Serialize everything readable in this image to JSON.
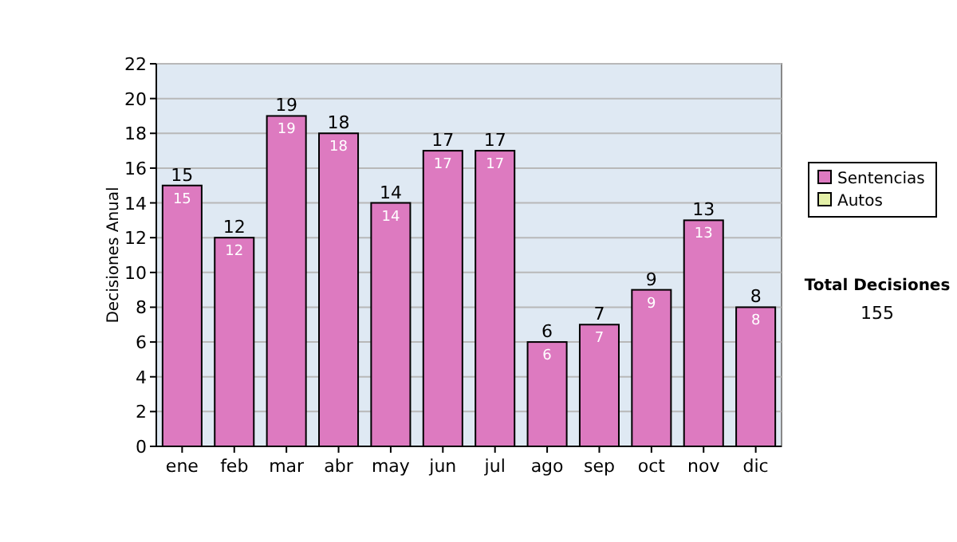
{
  "chart_data": {
    "type": "bar",
    "ylabel": "Decisiones Anual",
    "categories": [
      "ene",
      "feb",
      "mar",
      "abr",
      "may",
      "jun",
      "jul",
      "ago",
      "sep",
      "oct",
      "nov",
      "dic"
    ],
    "series": [
      {
        "name": "Sentencias",
        "color": "#dd7ac0",
        "values": [
          15,
          12,
          19,
          18,
          14,
          17,
          17,
          6,
          7,
          9,
          13,
          8
        ],
        "value_labels": [
          "15",
          "12",
          "19",
          "18",
          "14",
          "17",
          "17",
          "6",
          "7",
          "9",
          "13",
          "8"
        ]
      },
      {
        "name": "Autos",
        "color": "#e4f0a8",
        "values": [
          0,
          0,
          0,
          0,
          0,
          0,
          0,
          0,
          0,
          0,
          0,
          0
        ]
      }
    ],
    "stacked": true,
    "totals": [
      "15",
      "12",
      "19",
      "18",
      "14",
      "17",
      "17",
      "6",
      "7",
      "9",
      "13",
      "8"
    ],
    "ylim": [
      0,
      22
    ],
    "yticks": [
      0,
      2,
      4,
      6,
      8,
      10,
      12,
      14,
      16,
      18,
      20,
      22
    ],
    "grid": "y",
    "legend": "right",
    "annotations": [
      "Total Decisiones",
      "155"
    ]
  }
}
